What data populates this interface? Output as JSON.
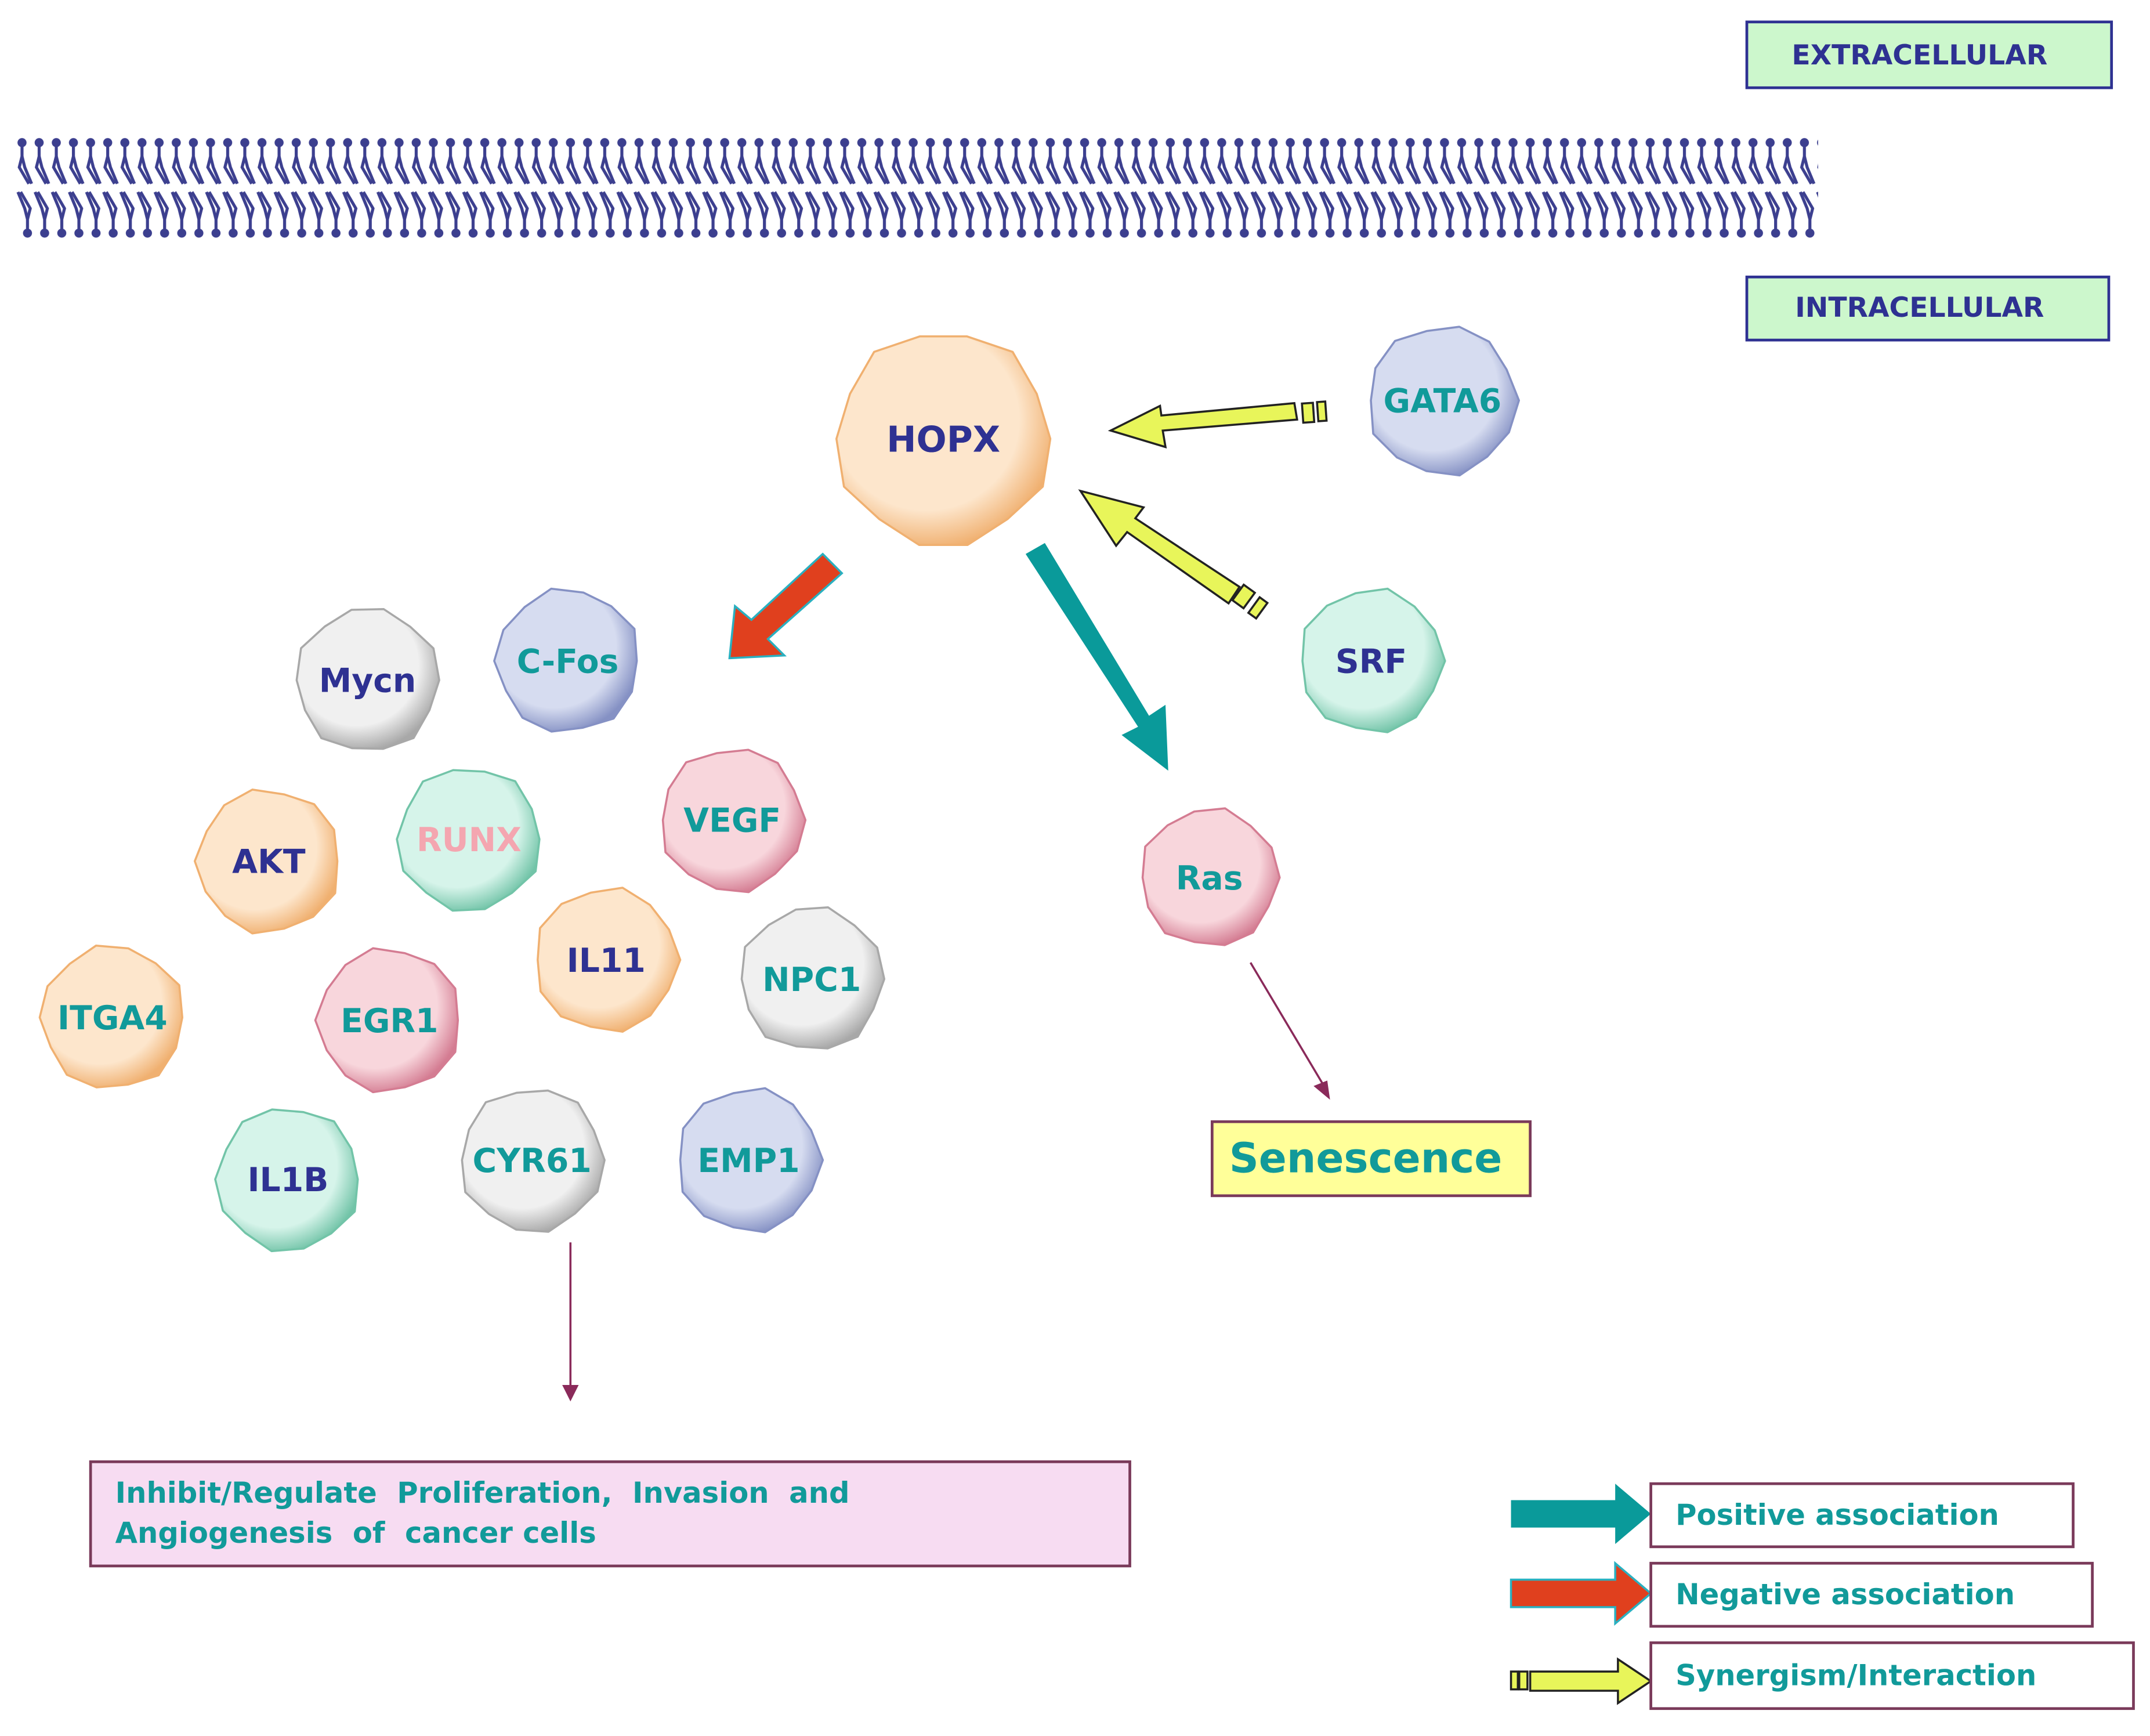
{
  "regions": {
    "extracellular": "EXTRACELLULAR",
    "intracellular": "INTRACELLULAR"
  },
  "colors": {
    "navy_text": "#2e3192",
    "teal_text": "#119a9a",
    "pink_text": "#f4a6b0",
    "positive": "#0a9a9a",
    "negative": "#e0401e",
    "synergism": "#e8f55a",
    "membrane": "#3c3f8f",
    "box_border": "#7a3a5a"
  },
  "palettes": {
    "orange": [
      "#fde6cc",
      "#f0b070"
    ],
    "blue": [
      "#d6dcf0",
      "#8591c4"
    ],
    "gray": [
      "#f0f0f0",
      "#a8a8a8"
    ],
    "green": [
      "#d6f4ea",
      "#72c4a8"
    ],
    "pink": [
      "#f8d6dc",
      "#d47c92"
    ]
  },
  "nodes": [
    {
      "label": "HOPX",
      "palette": "orange",
      "text": "navy_text"
    },
    {
      "label": "GATA6",
      "palette": "blue",
      "text": "teal_text"
    },
    {
      "label": "SRF",
      "palette": "green",
      "text": "navy_text"
    },
    {
      "label": "Mycn",
      "palette": "gray",
      "text": "navy_text"
    },
    {
      "label": "C-Fos",
      "palette": "blue",
      "text": "teal_text"
    },
    {
      "label": "AKT",
      "palette": "orange",
      "text": "navy_text"
    },
    {
      "label": "RUNX",
      "palette": "green",
      "text": "pink_text"
    },
    {
      "label": "VEGF",
      "palette": "pink",
      "text": "teal_text"
    },
    {
      "label": "IL11",
      "palette": "orange",
      "text": "navy_text"
    },
    {
      "label": "NPC1",
      "palette": "gray",
      "text": "teal_text"
    },
    {
      "label": "ITGA4",
      "palette": "orange",
      "text": "teal_text"
    },
    {
      "label": "EGR1",
      "palette": "pink",
      "text": "teal_text"
    },
    {
      "label": "IL1B",
      "palette": "green",
      "text": "navy_text"
    },
    {
      "label": "CYR61",
      "palette": "gray",
      "text": "teal_text"
    },
    {
      "label": "EMP1",
      "palette": "blue",
      "text": "teal_text"
    },
    {
      "label": "Ras",
      "palette": "pink",
      "text": "teal_text"
    }
  ],
  "outcomes": {
    "senescence": "Senescence",
    "inhibit_line1": "Inhibit/Regulate  Proliferation,  Invasion  and",
    "inhibit_line2": "Angiogenesis  of  cancer cells"
  },
  "legend": [
    {
      "label": "Positive association",
      "type": "positive"
    },
    {
      "label": "Negative association",
      "type": "negative"
    },
    {
      "label": "Synergism/Interaction",
      "type": "synergism"
    }
  ]
}
